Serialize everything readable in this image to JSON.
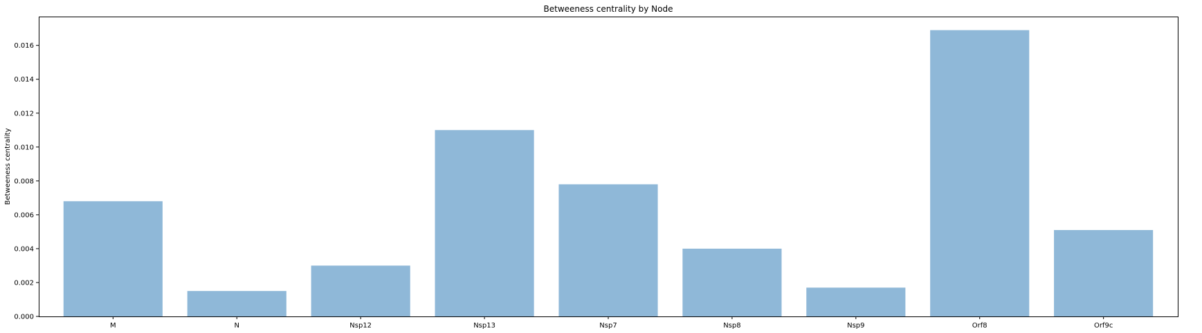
{
  "chart_data": {
    "type": "bar",
    "title": "Betweeness centrality by Node",
    "xlabel": "",
    "ylabel": "Betweeness centrality",
    "categories": [
      "M",
      "N",
      "Nsp12",
      "Nsp13",
      "Nsp7",
      "Nsp8",
      "Nsp9",
      "Orf8",
      "Orf9c"
    ],
    "values": [
      0.0068,
      0.0015,
      0.003,
      0.011,
      0.0078,
      0.004,
      0.0017,
      0.0169,
      0.0051
    ],
    "ylim": [
      0,
      0.0177
    ],
    "yticks": [
      "0.000",
      "0.002",
      "0.004",
      "0.006",
      "0.008",
      "0.010",
      "0.012",
      "0.014",
      "0.016"
    ],
    "bar_color": "#8fb8d8",
    "grid": false,
    "legend": "none"
  }
}
